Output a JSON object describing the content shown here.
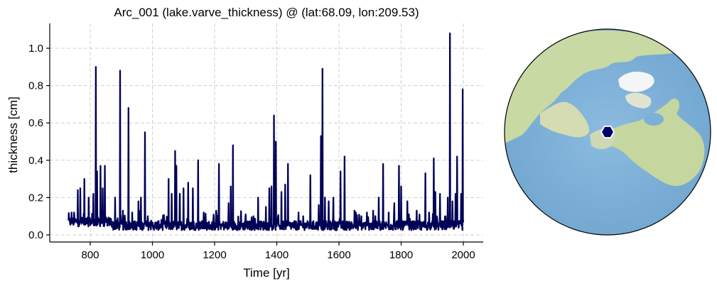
{
  "chart_data": {
    "type": "line",
    "title": "Arc_001 (lake.varve_thickness) @ (lat:68.09, lon:209.53)",
    "xlabel": "Time [yr]",
    "ylabel": "thickness [cm]",
    "xlim": [
      660,
      2065
    ],
    "ylim": [
      -0.04,
      1.13
    ],
    "xticks": [
      800,
      1000,
      1200,
      1400,
      1600,
      1800,
      2000
    ],
    "xtick_labels": [
      "800",
      "1000",
      "1200",
      "1400",
      "1600",
      "1800",
      "2000"
    ],
    "yticks": [
      0.0,
      0.2,
      0.4,
      0.6,
      0.8,
      1.0
    ],
    "ytick_labels": [
      "0.0",
      "0.2",
      "0.4",
      "0.6",
      "0.8",
      "1.0"
    ],
    "grid": true,
    "legend": false,
    "series": [
      {
        "name": "lake.varve_thickness",
        "color": "#000055",
        "x_range": [
          730,
          2000
        ],
        "baseline": 0.05,
        "spikes": [
          {
            "x": 740,
            "y": 0.12
          },
          {
            "x": 748,
            "y": 0.12
          },
          {
            "x": 760,
            "y": 0.24
          },
          {
            "x": 768,
            "y": 0.25
          },
          {
            "x": 781,
            "y": 0.3
          },
          {
            "x": 795,
            "y": 0.2
          },
          {
            "x": 810,
            "y": 0.22
          },
          {
            "x": 818,
            "y": 0.9
          },
          {
            "x": 822,
            "y": 0.34
          },
          {
            "x": 833,
            "y": 0.37
          },
          {
            "x": 840,
            "y": 0.25
          },
          {
            "x": 847,
            "y": 0.37
          },
          {
            "x": 880,
            "y": 0.2
          },
          {
            "x": 896,
            "y": 0.88
          },
          {
            "x": 905,
            "y": 0.13
          },
          {
            "x": 923,
            "y": 0.68
          },
          {
            "x": 935,
            "y": 0.12
          },
          {
            "x": 955,
            "y": 0.18
          },
          {
            "x": 963,
            "y": 0.2
          },
          {
            "x": 976,
            "y": 0.55
          },
          {
            "x": 985,
            "y": 0.1
          },
          {
            "x": 1052,
            "y": 0.3
          },
          {
            "x": 1062,
            "y": 0.22
          },
          {
            "x": 1073,
            "y": 0.45
          },
          {
            "x": 1077,
            "y": 0.37
          },
          {
            "x": 1088,
            "y": 0.22
          },
          {
            "x": 1100,
            "y": 0.25
          },
          {
            "x": 1115,
            "y": 0.28
          },
          {
            "x": 1130,
            "y": 0.25
          },
          {
            "x": 1147,
            "y": 0.4
          },
          {
            "x": 1165,
            "y": 0.12
          },
          {
            "x": 1205,
            "y": 0.13
          },
          {
            "x": 1214,
            "y": 0.38
          },
          {
            "x": 1245,
            "y": 0.17
          },
          {
            "x": 1252,
            "y": 0.26
          },
          {
            "x": 1259,
            "y": 0.48
          },
          {
            "x": 1300,
            "y": 0.11
          },
          {
            "x": 1325,
            "y": 0.1
          },
          {
            "x": 1340,
            "y": 0.2
          },
          {
            "x": 1365,
            "y": 0.15
          },
          {
            "x": 1376,
            "y": 0.25
          },
          {
            "x": 1383,
            "y": 0.26
          },
          {
            "x": 1391,
            "y": 0.64
          },
          {
            "x": 1397,
            "y": 0.5
          },
          {
            "x": 1415,
            "y": 0.23
          },
          {
            "x": 1427,
            "y": 0.27
          },
          {
            "x": 1436,
            "y": 0.38
          },
          {
            "x": 1470,
            "y": 0.12
          },
          {
            "x": 1485,
            "y": 0.1
          },
          {
            "x": 1508,
            "y": 0.32
          },
          {
            "x": 1535,
            "y": 0.16
          },
          {
            "x": 1542,
            "y": 0.53
          },
          {
            "x": 1547,
            "y": 0.89
          },
          {
            "x": 1555,
            "y": 0.2
          },
          {
            "x": 1567,
            "y": 0.18
          },
          {
            "x": 1582,
            "y": 0.2
          },
          {
            "x": 1605,
            "y": 0.34
          },
          {
            "x": 1618,
            "y": 0.42
          },
          {
            "x": 1650,
            "y": 0.13
          },
          {
            "x": 1672,
            "y": 0.1
          },
          {
            "x": 1690,
            "y": 0.12
          },
          {
            "x": 1710,
            "y": 0.13
          },
          {
            "x": 1728,
            "y": 0.2
          },
          {
            "x": 1742,
            "y": 0.38
          },
          {
            "x": 1760,
            "y": 0.12
          },
          {
            "x": 1778,
            "y": 0.17
          },
          {
            "x": 1793,
            "y": 0.37
          },
          {
            "x": 1800,
            "y": 0.26
          },
          {
            "x": 1820,
            "y": 0.18
          },
          {
            "x": 1850,
            "y": 0.13
          },
          {
            "x": 1878,
            "y": 0.33
          },
          {
            "x": 1890,
            "y": 0.12
          },
          {
            "x": 1905,
            "y": 0.41
          },
          {
            "x": 1910,
            "y": 0.23
          },
          {
            "x": 1925,
            "y": 0.22
          },
          {
            "x": 1950,
            "y": 0.2
          },
          {
            "x": 1957,
            "y": 1.08
          },
          {
            "x": 1965,
            "y": 0.18
          },
          {
            "x": 1975,
            "y": 0.22
          },
          {
            "x": 1980,
            "y": 0.42
          },
          {
            "x": 1993,
            "y": 0.22
          },
          {
            "x": 1998,
            "y": 0.78
          },
          {
            "x": 2000,
            "y": 0.08
          }
        ]
      }
    ],
    "map": {
      "projection": "orthographic",
      "center_lat": 68.09,
      "center_lon": 209.53,
      "marker": {
        "lat": 68.09,
        "lon": 209.53,
        "shape": "hexagon",
        "color": "#000066",
        "edge": "#ffffff"
      }
    }
  },
  "colors": {
    "series": "#000055",
    "ocean": "#7eb0d5",
    "land": "#c8d8a6",
    "ice": "#f4f6f8",
    "marker": "#000066"
  }
}
